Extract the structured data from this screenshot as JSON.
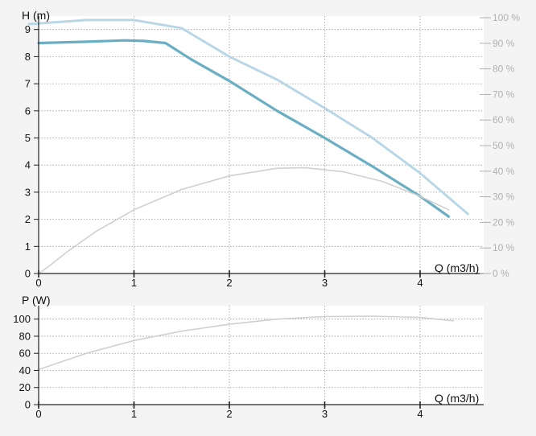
{
  "chart_data": [
    {
      "type": "line",
      "title": "",
      "ylabel": "H (m)",
      "xlabel": "Q (m3/h)",
      "xlim": [
        0,
        4.6
      ],
      "ylim": [
        0,
        9.5
      ],
      "x_ticks": [
        "0",
        "1",
        "2",
        "3",
        "4"
      ],
      "y_ticks": [
        "0",
        "1",
        "2",
        "3",
        "4",
        "5",
        "6",
        "7",
        "8",
        "9"
      ],
      "y2_ticks": [
        "0 %",
        "10 %",
        "20 %",
        "30 %",
        "40 %",
        "50 %",
        "60 %",
        "70 %",
        "80 %",
        "90 %",
        "100 %"
      ],
      "grid": true,
      "series": [
        {
          "role": "head",
          "color": "#6aaec4",
          "axis": "left",
          "points": [
            [
              0,
              8.5
            ],
            [
              0.5,
              8.55
            ],
            [
              0.9,
              8.6
            ],
            [
              1.1,
              8.58
            ],
            [
              1.33,
              8.5
            ],
            [
              1.6,
              7.9
            ],
            [
              2.0,
              7.1
            ],
            [
              2.5,
              6.0
            ],
            [
              3.0,
              5.0
            ],
            [
              3.5,
              3.95
            ],
            [
              4.0,
              2.85
            ],
            [
              4.3,
              2.1
            ]
          ]
        },
        {
          "role": "efficiency",
          "color": "#d0d0d0",
          "axis": "left",
          "points": [
            [
              0,
              0.0
            ],
            [
              0.1,
              0.25
            ],
            [
              0.3,
              0.8
            ],
            [
              0.6,
              1.55
            ],
            [
              1.0,
              2.35
            ],
            [
              1.5,
              3.1
            ],
            [
              2.0,
              3.6
            ],
            [
              2.5,
              3.88
            ],
            [
              2.8,
              3.9
            ],
            [
              3.2,
              3.75
            ],
            [
              3.6,
              3.4
            ],
            [
              4.0,
              2.85
            ],
            [
              4.3,
              2.35
            ]
          ]
        },
        {
          "role": "npsh-reference",
          "color": "#b8d6e6",
          "axis": "left",
          "dashed": true,
          "points": [
            [
              -0.1,
              9.2
            ],
            [
              0.5,
              9.35
            ],
            [
              1.0,
              9.35
            ],
            [
              1.5,
              9.05
            ],
            [
              2.0,
              8.0
            ],
            [
              2.5,
              7.15
            ],
            [
              3.0,
              6.1
            ],
            [
              3.5,
              5.0
            ],
            [
              4.0,
              3.7
            ],
            [
              4.5,
              2.2
            ]
          ]
        }
      ]
    },
    {
      "type": "line",
      "title": "",
      "ylabel": "P (W)",
      "xlabel": "Q (m3/h)",
      "xlim": [
        0,
        4.6
      ],
      "ylim": [
        0,
        110
      ],
      "x_ticks": [
        "0",
        "1",
        "2",
        "3",
        "4"
      ],
      "y_ticks": [
        "0",
        "20",
        "40",
        "60",
        "80",
        "100"
      ],
      "grid": true,
      "series": [
        {
          "role": "power",
          "color": "#d0d0d0",
          "points": [
            [
              0,
              41
            ],
            [
              0.5,
              60
            ],
            [
              1.0,
              75
            ],
            [
              1.5,
              86
            ],
            [
              2.0,
              94
            ],
            [
              2.5,
              100
            ],
            [
              3.0,
              103
            ],
            [
              3.5,
              103.5
            ],
            [
              4.0,
              102
            ],
            [
              4.35,
              98
            ]
          ]
        }
      ]
    }
  ]
}
